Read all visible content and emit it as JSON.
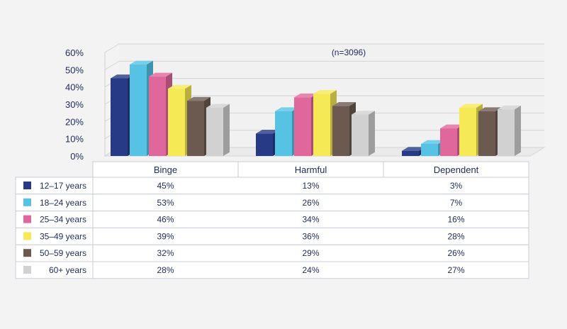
{
  "chart_data": {
    "type": "bar",
    "annotation": "(n=3096)",
    "categories": [
      "Binge",
      "Harmful",
      "Dependent"
    ],
    "ylim": [
      0,
      60
    ],
    "yticks": [
      "0%",
      "10%",
      "20%",
      "30%",
      "40%",
      "50%",
      "60%"
    ],
    "grid": true,
    "legend_position": "table-left",
    "series": [
      {
        "name": "12–17 years",
        "color": "#263a86",
        "values": [
          45,
          13,
          3
        ],
        "labels": [
          "45%",
          "13%",
          "3%"
        ]
      },
      {
        "name": "18–24 years",
        "color": "#56c3e4",
        "values": [
          53,
          26,
          7
        ],
        "labels": [
          "53%",
          "26%",
          "7%"
        ]
      },
      {
        "name": "25–34 years",
        "color": "#e0679b",
        "values": [
          46,
          34,
          16
        ],
        "labels": [
          "46%",
          "34%",
          "16%"
        ]
      },
      {
        "name": "35–49 years",
        "color": "#f5e955",
        "values": [
          39,
          36,
          28
        ],
        "labels": [
          "39%",
          "36%",
          "28%"
        ]
      },
      {
        "name": "50–59 years",
        "color": "#6c5a51",
        "values": [
          32,
          29,
          26
        ],
        "labels": [
          "32%",
          "29%",
          "26%"
        ]
      },
      {
        "name": "60+ years",
        "color": "#d1d1d1",
        "values": [
          28,
          24,
          27
        ],
        "labels": [
          "28%",
          "24%",
          "27%"
        ]
      }
    ]
  }
}
